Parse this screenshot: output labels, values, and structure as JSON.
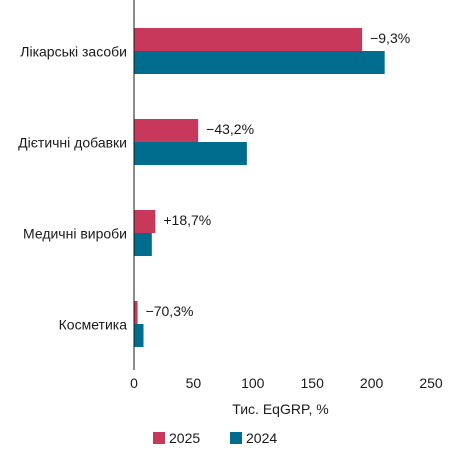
{
  "chart_data": {
    "type": "bar",
    "orientation": "horizontal",
    "categories": [
      "Лікарські засоби",
      "Дієтичні добавки",
      "Медичні вироби",
      "Косметика"
    ],
    "series": [
      {
        "name": "2025",
        "color": "#c8385a",
        "values": [
          192,
          54,
          18,
          3
        ]
      },
      {
        "name": "2024",
        "color": "#006d8f",
        "values": [
          211,
          95,
          15,
          8
        ]
      }
    ],
    "annotations": [
      "−9,3%",
      "−43,2%",
      "+18,7%",
      "−70,3%"
    ],
    "xlabel": "Тис. EqGRP, %",
    "ylabel": "",
    "xlim": [
      0,
      250
    ],
    "xticks": [
      "0",
      "50",
      "100",
      "150",
      "200",
      "250"
    ],
    "grid": false,
    "legend_position": "bottom"
  }
}
